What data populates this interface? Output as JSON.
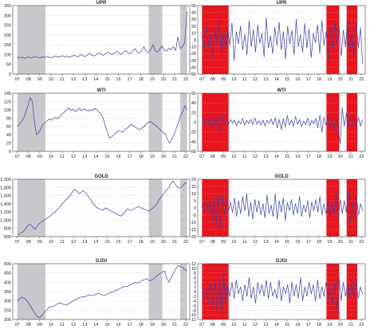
{
  "chart_data": [
    {
      "id": "upr-level",
      "type": "line",
      "title": "UPR",
      "x_ticks": [
        "07",
        "08",
        "09",
        "10",
        "11",
        "12",
        "13",
        "14",
        "15",
        "16",
        "17",
        "18",
        "19",
        "20",
        "21",
        "22"
      ],
      "y_ticks": [
        "0",
        "50",
        "100",
        "150",
        "200",
        "250",
        "300",
        "350"
      ],
      "ylim": [
        0,
        350
      ],
      "shading_color": "#c8c8cc",
      "shaded_periods": [
        [
          2007.0,
          2009.5
        ],
        [
          2018.7,
          2019.9
        ],
        [
          2021.5,
          2022.1
        ]
      ],
      "series": [
        {
          "values": [
            90,
            82,
            86,
            80,
            84,
            88,
            82,
            86,
            90,
            85,
            82,
            88,
            84,
            90,
            86,
            84,
            88,
            92,
            86,
            90,
            94,
            88,
            92,
            86,
            90,
            96,
            92,
            88,
            100,
            94,
            90,
            98,
            104,
            96,
            92,
            100,
            108,
            102,
            96,
            104,
            112,
            104,
            98,
            108,
            116,
            106,
            100,
            112,
            120,
            108,
            104,
            118,
            130,
            112,
            108,
            120,
            140,
            115,
            110,
            125,
            150,
            118,
            112,
            130,
            145,
            120,
            118,
            132,
            125,
            140,
            120,
            190,
            130,
            140,
            160,
            320
          ]
        }
      ]
    },
    {
      "id": "upr-return",
      "type": "line",
      "title": "UPR",
      "x_ticks": [
        "07",
        "08",
        "09",
        "10",
        "11",
        "12",
        "13",
        "14",
        "15",
        "16",
        "17",
        "18",
        "19",
        "20",
        "21",
        "22"
      ],
      "y_ticks": [
        "-50",
        "-40",
        "-30",
        "-20",
        "-10",
        "0",
        "10",
        "20",
        "30",
        "40",
        "50"
      ],
      "ylim": [
        -50,
        50
      ],
      "shading_color": "#e8141e",
      "shaded_periods": [
        [
          2007.0,
          2009.5
        ],
        [
          2018.7,
          2019.9
        ],
        [
          2020.6,
          2021.6
        ]
      ],
      "series": [
        {
          "values": [
            5,
            -15,
            20,
            -10,
            8,
            -25,
            15,
            -5,
            30,
            -20,
            10,
            -12,
            18,
            -8,
            25,
            -30,
            12,
            -6,
            20,
            -15,
            8,
            -22,
            28,
            -10,
            15,
            -18,
            22,
            -5,
            10,
            -25,
            32,
            -12,
            6,
            -20,
            18,
            -8,
            26,
            -15,
            12,
            -28,
            20,
            -6,
            14,
            -22,
            30,
            -10,
            8,
            -18,
            24,
            -12,
            16,
            -26,
            10,
            -4,
            22,
            -20,
            28,
            -8,
            12,
            -30,
            18,
            -14,
            26,
            -6,
            20,
            -24,
            14,
            -10,
            30,
            -16,
            8,
            -22,
            25,
            -12,
            18,
            -35
          ]
        }
      ]
    },
    {
      "id": "wti-level",
      "type": "line",
      "title": "WTI",
      "x_ticks": [
        "07",
        "08",
        "09",
        "10",
        "11",
        "12",
        "13",
        "14",
        "15",
        "16",
        "17",
        "18",
        "19",
        "20",
        "21",
        "22"
      ],
      "y_ticks": [
        "0",
        "20",
        "40",
        "60",
        "80",
        "100",
        "120",
        "140"
      ],
      "ylim": [
        0,
        140
      ],
      "shading_color": "#c8c8cc",
      "shaded_periods": [
        [
          2007.0,
          2009.5
        ],
        [
          2018.7,
          2019.9
        ],
        [
          2021.5,
          2022.1
        ]
      ],
      "series": [
        {
          "values": [
            60,
            65,
            72,
            80,
            95,
            110,
            130,
            120,
            70,
            40,
            45,
            55,
            65,
            70,
            74,
            78,
            75,
            80,
            82,
            78,
            85,
            90,
            95,
            100,
            105,
            98,
            102,
            96,
            100,
            104,
            98,
            102,
            100,
            97,
            101,
            98,
            104,
            100,
            95,
            90,
            80,
            60,
            45,
            32,
            35,
            40,
            45,
            50,
            48,
            46,
            52,
            55,
            60,
            65,
            62,
            58,
            55,
            52,
            56,
            60,
            66,
            70,
            72,
            68,
            64,
            60,
            55,
            50,
            45,
            42,
            28,
            20,
            30,
            40,
            55,
            70,
            85,
            95,
            110,
            100
          ]
        }
      ]
    },
    {
      "id": "wti-return",
      "type": "line",
      "title": "WTI",
      "x_ticks": [
        "07",
        "08",
        "09",
        "10",
        "11",
        "12",
        "13",
        "14",
        "15",
        "16",
        "17",
        "18",
        "19",
        "20",
        "21",
        "22"
      ],
      "y_ticks": [
        "-60",
        "-40",
        "-20",
        "0",
        "20",
        "40",
        "60"
      ],
      "ylim": [
        -60,
        60
      ],
      "shading_color": "#e8141e",
      "shaded_periods": [
        [
          2007.0,
          2009.5
        ],
        [
          2018.7,
          2019.9
        ],
        [
          2020.6,
          2021.6
        ]
      ],
      "series": [
        {
          "values": [
            4,
            -6,
            8,
            -3,
            10,
            -12,
            6,
            -8,
            15,
            -20,
            12,
            -5,
            8,
            -4,
            6,
            -2,
            5,
            -7,
            3,
            -4,
            8,
            -6,
            4,
            -3,
            6,
            -5,
            9,
            -4,
            3,
            -6,
            5,
            -8,
            4,
            -2,
            7,
            -5,
            10,
            -12,
            6,
            -15,
            8,
            -10,
            14,
            -6,
            5,
            -8,
            12,
            -4,
            6,
            -10,
            3,
            -5,
            9,
            -7,
            4,
            -3,
            8,
            -12,
            15,
            -20,
            10,
            -6,
            12,
            -8,
            5,
            -15,
            6,
            -10,
            -45,
            30,
            -8,
            18,
            -10,
            12,
            -6,
            8,
            -5,
            10,
            -8,
            6
          ]
        }
      ]
    },
    {
      "id": "gold-level",
      "type": "line",
      "title": "GOLD",
      "x_ticks": [
        "07",
        "08",
        "09",
        "10",
        "11",
        "12",
        "13",
        "14",
        "15",
        "16",
        "17",
        "18",
        "19",
        "20",
        "21",
        "22"
      ],
      "y_ticks": [
        "600",
        "800",
        "1,000",
        "1,200",
        "1,400",
        "1,600",
        "1,800",
        "2,000"
      ],
      "ylim": [
        600,
        2000
      ],
      "shading_color": "#c8c8cc",
      "shaded_periods": [
        [
          2007.0,
          2009.5
        ],
        [
          2018.7,
          2019.9
        ],
        [
          2021.5,
          2022.1
        ]
      ],
      "series": [
        {
          "values": [
            650,
            660,
            690,
            720,
            780,
            850,
            900,
            880,
            820,
            780,
            860,
            920,
            950,
            980,
            1020,
            1050,
            1080,
            1120,
            1180,
            1200,
            1260,
            1300,
            1380,
            1420,
            1480,
            1520,
            1580,
            1640,
            1720,
            1750,
            1700,
            1650,
            1680,
            1720,
            1680,
            1620,
            1560,
            1480,
            1400,
            1350,
            1300,
            1280,
            1260,
            1240,
            1300,
            1280,
            1250,
            1220,
            1200,
            1180,
            1150,
            1120,
            1100,
            1150,
            1200,
            1280,
            1250,
            1240,
            1260,
            1290,
            1320,
            1330,
            1300,
            1280,
            1260,
            1240,
            1220,
            1260,
            1300,
            1350,
            1400,
            1500,
            1560,
            1620,
            1700,
            1750,
            1800,
            1900,
            1960,
            1880,
            1820,
            1780,
            1800,
            1850,
            1900,
            1920
          ]
        }
      ]
    },
    {
      "id": "gold-return",
      "type": "line",
      "title": "GOLD",
      "x_ticks": [
        "07",
        "08",
        "09",
        "10",
        "11",
        "12",
        "13",
        "14",
        "15",
        "16",
        "17",
        "18",
        "19",
        "20",
        "21",
        "22"
      ],
      "y_ticks": [
        "-20",
        "-15",
        "-10",
        "-5",
        "0",
        "5",
        "10",
        "15",
        "20"
      ],
      "ylim": [
        -20,
        20
      ],
      "shading_color": "#e8141e",
      "shaded_periods": [
        [
          2007.0,
          2009.5
        ],
        [
          2018.7,
          2019.9
        ],
        [
          2020.6,
          2021.6
        ]
      ],
      "series": [
        {
          "values": [
            2,
            -3,
            4,
            -1,
            5,
            -8,
            6,
            -12,
            10,
            -15,
            8,
            -5,
            6,
            -2,
            4,
            -3,
            7,
            -6,
            5,
            -4,
            8,
            -2,
            10,
            -6,
            4,
            -8,
            6,
            -3,
            5,
            -5,
            3,
            -7,
            9,
            -4,
            2,
            -6,
            10,
            -8,
            5,
            -3,
            7,
            -9,
            4,
            -2,
            6,
            -5,
            3,
            -4,
            8,
            -6,
            2,
            -3,
            5,
            -7,
            4,
            -2,
            6,
            -3,
            8,
            -5,
            3,
            -4,
            6,
            -6,
            2,
            -4,
            10,
            -8,
            6,
            -4,
            5,
            -3,
            12,
            -10,
            4,
            -6,
            8,
            -5,
            3,
            -2
          ]
        }
      ]
    },
    {
      "id": "djgi-level",
      "type": "line",
      "title": "DJGI",
      "x_ticks": [
        "07",
        "08",
        "09",
        "10",
        "11",
        "12",
        "13",
        "14",
        "15",
        "16",
        "17",
        "18",
        "19",
        "20",
        "21",
        "22"
      ],
      "y_ticks": [
        "200",
        "250",
        "300",
        "350",
        "400",
        "450",
        "500"
      ],
      "ylim": [
        200,
        500
      ],
      "shading_color": "#c8c8cc",
      "shaded_periods": [
        [
          2007.0,
          2009.5
        ],
        [
          2018.7,
          2019.9
        ],
        [
          2021.5,
          2022.1
        ]
      ],
      "series": [
        {
          "values": [
            300,
            310,
            320,
            315,
            305,
            290,
            270,
            250,
            230,
            215,
            210,
            220,
            235,
            250,
            262,
            270,
            268,
            275,
            285,
            290,
            285,
            280,
            278,
            284,
            292,
            300,
            306,
            310,
            318,
            322,
            320,
            326,
            332,
            330,
            328,
            334,
            340,
            338,
            332,
            330,
            336,
            340,
            346,
            350,
            356,
            360,
            366,
            372,
            378,
            376,
            382,
            388,
            394,
            400,
            395,
            402,
            410,
            414,
            420,
            408,
            410,
            418,
            430,
            440,
            448,
            455,
            460,
            420,
            400,
            430,
            450,
            470,
            490,
            485,
            480,
            470,
            460
          ]
        }
      ]
    },
    {
      "id": "djgi-return",
      "type": "line",
      "title": "DJGI",
      "x_ticks": [
        "07",
        "08",
        "09",
        "10",
        "11",
        "12",
        "13",
        "14",
        "15",
        "16",
        "17",
        "18",
        "19",
        "20",
        "21",
        "22"
      ],
      "y_ticks": [
        "-12",
        "-10",
        "-8",
        "-6",
        "-4",
        "-2",
        "0",
        "2",
        "4",
        "6",
        "8",
        "10",
        "12"
      ],
      "ylim": [
        -12,
        12
      ],
      "shading_color": "#e8141e",
      "shaded_periods": [
        [
          2007.0,
          2009.5
        ],
        [
          2018.7,
          2019.9
        ],
        [
          2020.6,
          2021.6
        ]
      ],
      "series": [
        {
          "values": [
            2,
            -3,
            1,
            -4,
            3,
            -6,
            4,
            -8,
            6,
            -10,
            8,
            -5,
            3,
            -2,
            4,
            -3,
            5,
            -1,
            2,
            -4,
            3,
            -2,
            6,
            -3,
            2,
            -5,
            4,
            -1,
            3,
            -2,
            5,
            -3,
            4,
            -2,
            1,
            -3,
            5,
            -4,
            2,
            -1,
            3,
            -5,
            4,
            -2,
            3,
            -3,
            6,
            -4,
            2,
            -2,
            4,
            -1,
            3,
            -4,
            5,
            -3,
            2,
            -2,
            4,
            -3,
            1,
            -5,
            3,
            -8,
            6,
            -4,
            4,
            -2,
            3,
            -3,
            5,
            -2,
            4,
            -3,
            2,
            -1
          ]
        }
      ]
    }
  ]
}
